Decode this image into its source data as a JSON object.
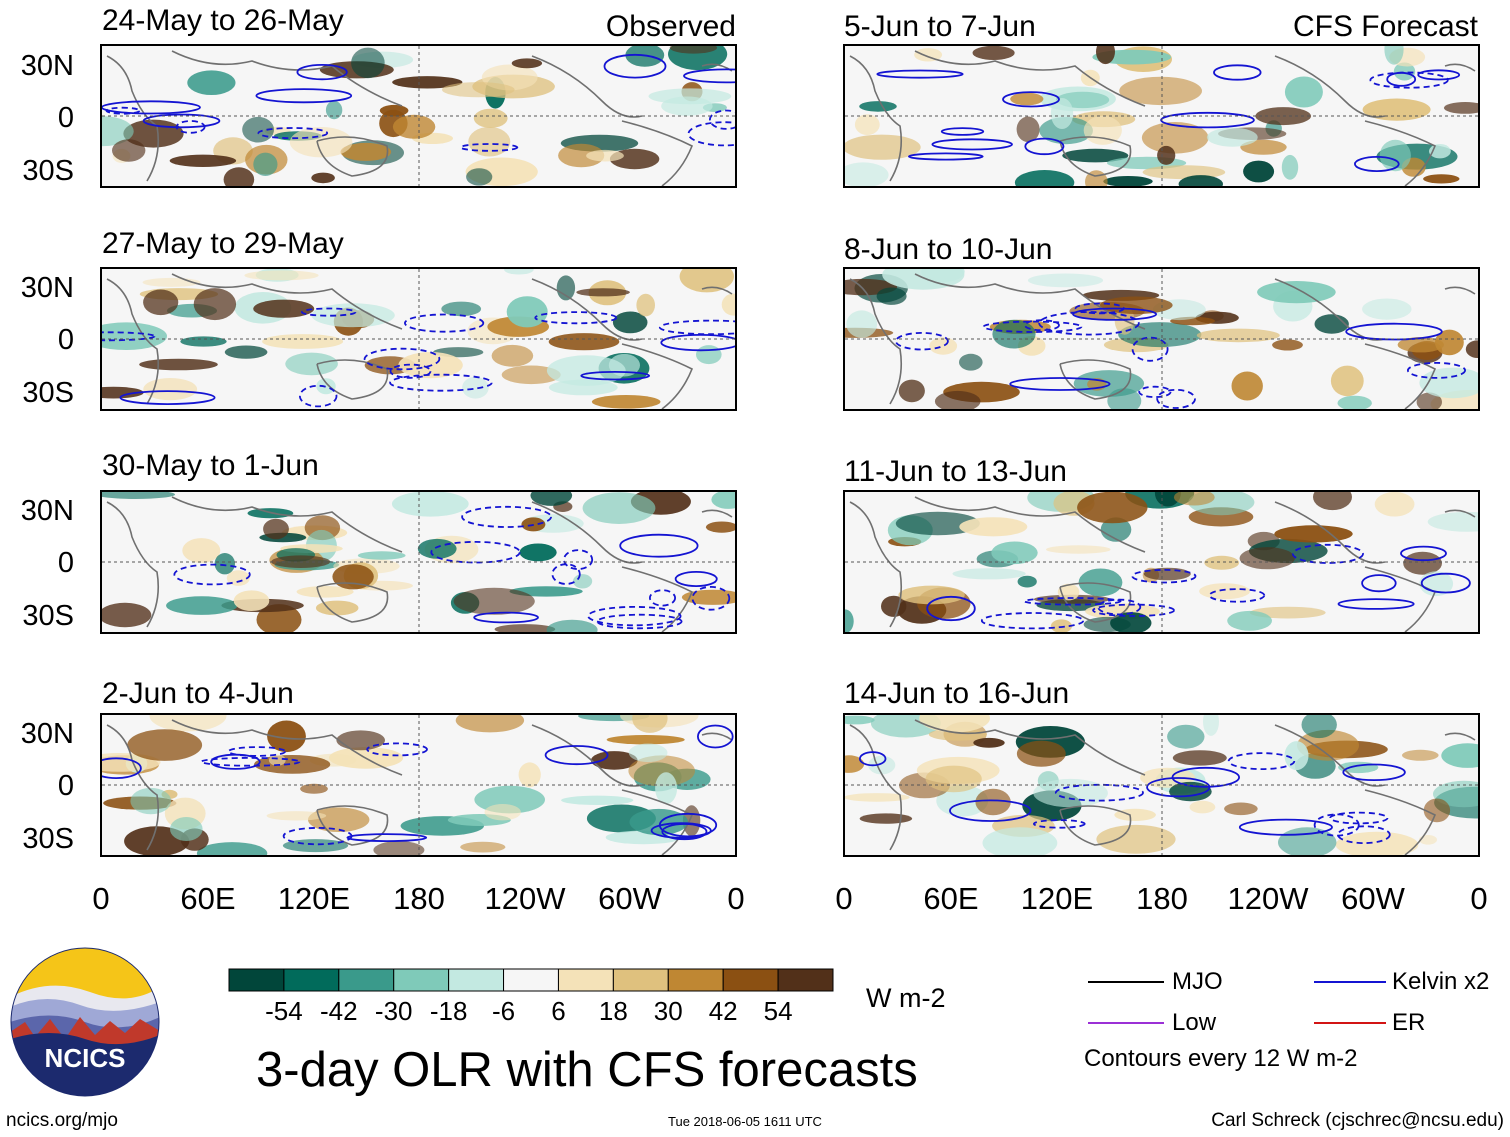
{
  "chart_data": {
    "type": "heatmap",
    "title": "3-day OLR with CFS forecasts",
    "variable": "OLR anomaly",
    "units": "W m-2",
    "column_labels": {
      "observed": "Observed",
      "forecast": "CFS Forecast"
    },
    "x_ticks": [
      "0",
      "60E",
      "120E",
      "180",
      "120W",
      "60W",
      "0"
    ],
    "y_ticks": [
      "30N",
      "0",
      "30S"
    ],
    "panels_observed": [
      {
        "period": "24-May to 26-May"
      },
      {
        "period": "27-May to 29-May"
      },
      {
        "period": "30-May to 1-Jun"
      },
      {
        "period": "2-Jun to 4-Jun"
      }
    ],
    "panels_forecast": [
      {
        "period": "5-Jun to 7-Jun"
      },
      {
        "period": "8-Jun to 10-Jun"
      },
      {
        "period": "11-Jun to 13-Jun"
      },
      {
        "period": "14-Jun to 16-Jun"
      }
    ],
    "colorbar": {
      "labels": [
        "-54",
        "-42",
        "-30",
        "-18",
        "-6",
        "6",
        "18",
        "30",
        "42",
        "54"
      ],
      "colors": [
        "#01463a",
        "#016b5b",
        "#3a9a8b",
        "#7fcab9",
        "#c3e9e1",
        "#f6f6f6",
        "#f4e2b8",
        "#dfc17e",
        "#bf8733",
        "#8b5012",
        "#523019"
      ],
      "units": "W m-2"
    },
    "contour_legend": [
      {
        "label": "MJO",
        "color": "#000000"
      },
      {
        "label": "Kelvin x2",
        "color": "#1414d2"
      },
      {
        "label": "Low",
        "color": "#9b30d6"
      },
      {
        "label": "ER",
        "color": "#d21414"
      }
    ],
    "contour_note": "Contours every 12 W m-2"
  },
  "footer": {
    "website": "ncics.org/mjo",
    "timestamp": "Tue 2018-06-05 1611 UTC",
    "credit": "Carl Schreck (cjschrec@ncsu.edu)"
  },
  "logo": {
    "text": "NCICS"
  }
}
